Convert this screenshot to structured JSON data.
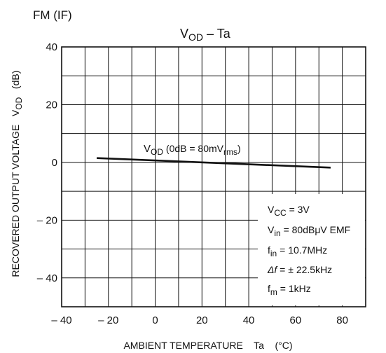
{
  "chart_data": {
    "type": "line",
    "header": "FM (IF)",
    "title": {
      "main": "V",
      "sub": "OD",
      "rest": " – Ta"
    },
    "xlabel": "AMBIENT TEMPERATURE    Ta    (°C)",
    "ylabel": {
      "pre": "RECOVERED OUTPUT VOLTAGE   V",
      "sub": "OD",
      "post": "   (dB)"
    },
    "xlim": [
      -40,
      90
    ],
    "ylim": [
      -50,
      40
    ],
    "grid": true,
    "x_ticks": [
      -40,
      -20,
      0,
      20,
      40,
      60,
      80
    ],
    "x_tick_labels": [
      "– 40",
      "– 20",
      "0",
      "20",
      "40",
      "60",
      "80"
    ],
    "y_ticks": [
      40,
      20,
      0,
      -20,
      -40
    ],
    "y_tick_labels": [
      "40",
      "20",
      "0",
      "– 20",
      "– 40"
    ],
    "series": [
      {
        "label": {
          "main": "V",
          "sub": "OD",
          "mid": " (0dB = 80mV",
          "sub2": "rms",
          "end": ")"
        },
        "x": [
          -25,
          75
        ],
        "y": [
          1.5,
          -1.8
        ]
      }
    ],
    "conditions": [
      {
        "main": "V",
        "sub": "CC",
        "rest": " = 3V"
      },
      {
        "main": "V",
        "sub": "in",
        "rest": " = 80dBμV  EMF"
      },
      {
        "main": "f",
        "sub": "in",
        "rest": " = 10.7MHz"
      },
      {
        "main": "Δf",
        "sub": "",
        "rest": " = ± 22.5kHz"
      },
      {
        "main": "f",
        "sub": "m",
        "rest": " = 1kHz"
      }
    ]
  }
}
